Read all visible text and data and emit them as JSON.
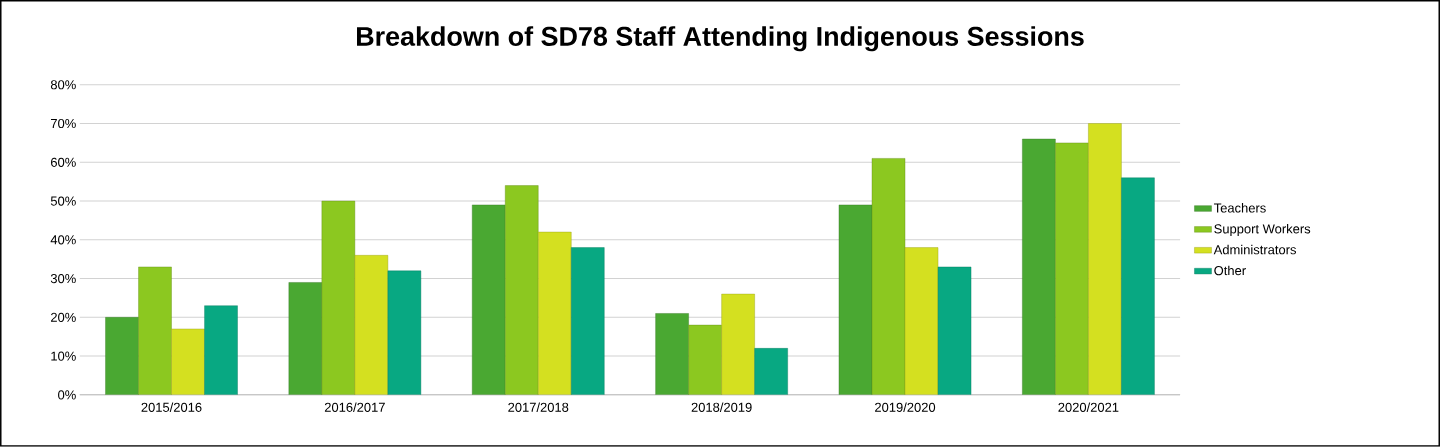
{
  "chart_data": {
    "type": "bar",
    "title": "Breakdown of SD78 Staff Attending Indigenous Sessions",
    "categories": [
      "2015/2016",
      "2016/2017",
      "2017/2018",
      "2018/2019",
      "2019/2020",
      "2020/2021"
    ],
    "series": [
      {
        "name": "Teachers",
        "color": "#4aa832",
        "values": [
          20,
          29,
          49,
          21,
          49,
          66
        ]
      },
      {
        "name": "Support Workers",
        "color": "#8cc820",
        "values": [
          33,
          50,
          54,
          18,
          61,
          65
        ]
      },
      {
        "name": "Administrators",
        "color": "#d4e020",
        "values": [
          17,
          36,
          42,
          26,
          38,
          70
        ]
      },
      {
        "name": "Other",
        "color": "#08a882",
        "values": [
          23,
          32,
          38,
          12,
          33,
          56
        ]
      }
    ],
    "ylim": [
      0,
      80
    ],
    "yticks": [
      {
        "value": 0,
        "label": "0%"
      },
      {
        "value": 10,
        "label": "10%"
      },
      {
        "value": 20,
        "label": "20%"
      },
      {
        "value": 30,
        "label": "30%"
      },
      {
        "value": 40,
        "label": "40%"
      },
      {
        "value": 50,
        "label": "50%"
      },
      {
        "value": 60,
        "label": "60%"
      },
      {
        "value": 70,
        "label": "70%"
      },
      {
        "value": 80,
        "label": "80%"
      }
    ],
    "grid": "y",
    "legend": "right"
  }
}
